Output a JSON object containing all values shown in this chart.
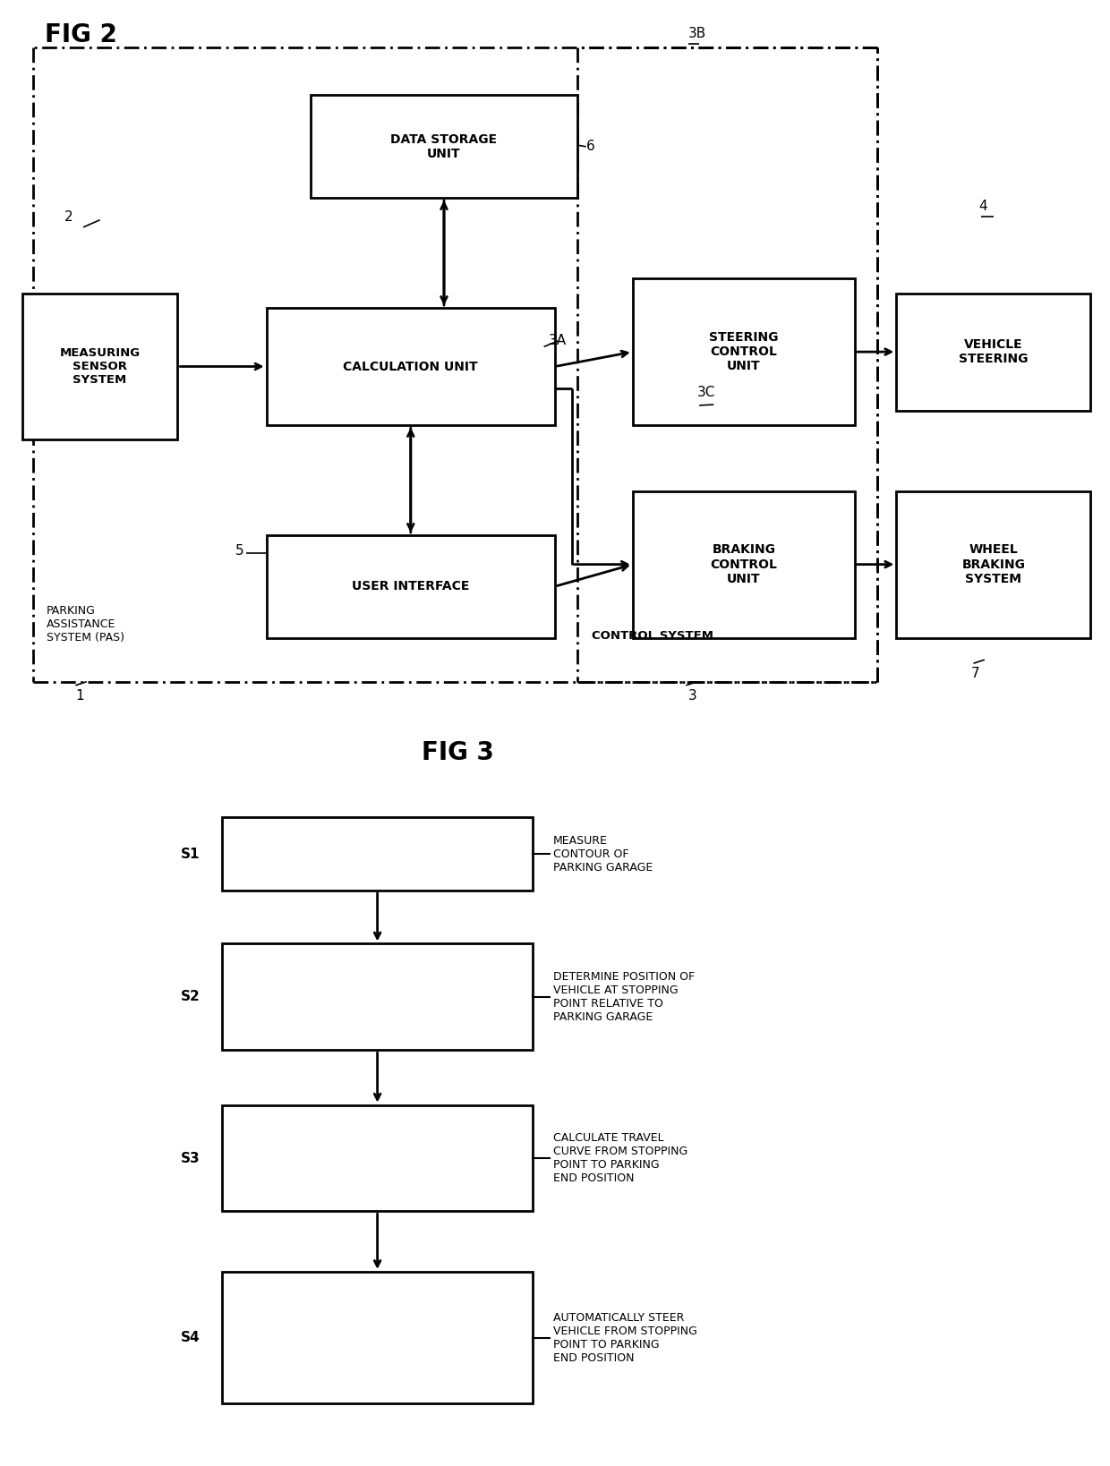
{
  "fig_title1": "FIG 2",
  "fig_title2": "FIG 3",
  "bg_color": "#ffffff",
  "fig3_steps": [
    {
      "label": "S1",
      "text": "MEASURE\nCONTOUR OF\nPARKING GARAGE"
    },
    {
      "label": "S2",
      "text": "DETERMINE POSITION OF\nVEHICLE AT STOPPING\nPOINT RELATIVE TO\nPARKING GARAGE"
    },
    {
      "label": "S3",
      "text": "CALCULATE TRAVEL\nCURVE FROM STOPPING\nPOINT TO PARKING\nEND POSITION"
    },
    {
      "label": "S4",
      "text": "AUTOMATICALLY STEER\nVEHICLE FROM STOPPING\nPOINT TO PARKING\nEND POSITION"
    }
  ]
}
